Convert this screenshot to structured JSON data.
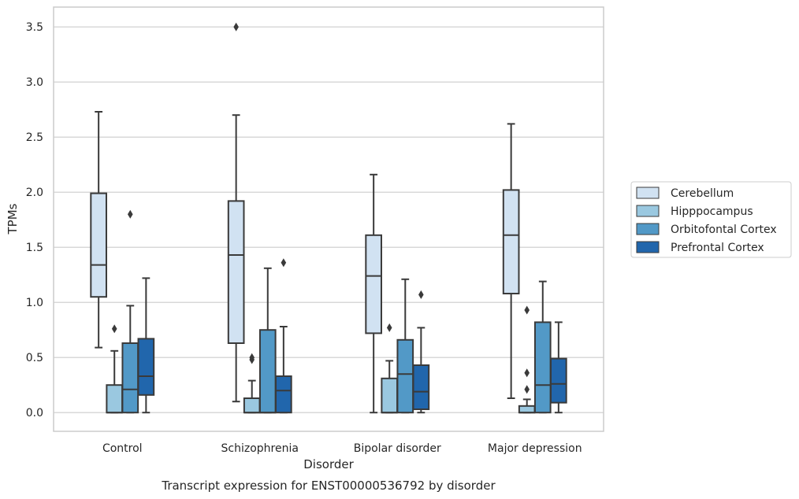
{
  "chart_data": {
    "type": "box",
    "title": "",
    "caption": "Transcript expression for ENST00000536792 by disorder",
    "xlabel": "Disorder",
    "ylabel": "TPMs",
    "ylim": [
      -0.17,
      3.68
    ],
    "yticks": [
      "0.0",
      "0.5",
      "1.0",
      "1.5",
      "2.0",
      "2.5",
      "3.0",
      "3.5"
    ],
    "ytick_values": [
      0,
      0.5,
      1.0,
      1.5,
      2.0,
      2.5,
      3.0,
      3.5
    ],
    "grid": "horizontal",
    "legend_position": "right",
    "categories": [
      "Control",
      "Schizophrenia",
      "Bipolar disorder",
      "Major depression"
    ],
    "series": [
      {
        "name": "Cerebellum",
        "color": "#d1e2f2",
        "boxes": [
          {
            "whislo": 0.59,
            "q1": 1.05,
            "med": 1.34,
            "q3": 1.99,
            "whishi": 2.73,
            "fliers": []
          },
          {
            "whislo": 0.1,
            "q1": 0.63,
            "med": 1.43,
            "q3": 1.92,
            "whishi": 2.7,
            "fliers": [
              3.5
            ]
          },
          {
            "whislo": 0.0,
            "q1": 0.72,
            "med": 1.24,
            "q3": 1.61,
            "whishi": 2.16,
            "fliers": []
          },
          {
            "whislo": 0.13,
            "q1": 1.08,
            "med": 1.61,
            "q3": 2.02,
            "whishi": 2.62,
            "fliers": []
          }
        ]
      },
      {
        "name": "Hipppocampus",
        "color": "#9ac8e0",
        "boxes": [
          {
            "whislo": 0.0,
            "q1": 0.0,
            "med": 0.0,
            "q3": 0.25,
            "whishi": 0.56,
            "fliers": [
              0.76
            ]
          },
          {
            "whislo": 0.0,
            "q1": 0.0,
            "med": 0.0,
            "q3": 0.13,
            "whishi": 0.29,
            "fliers": [
              0.48,
              0.5
            ]
          },
          {
            "whislo": 0.0,
            "q1": 0.0,
            "med": 0.0,
            "q3": 0.31,
            "whishi": 0.47,
            "fliers": [
              0.77
            ]
          },
          {
            "whislo": 0.0,
            "q1": 0.0,
            "med": 0.0,
            "q3": 0.06,
            "whishi": 0.12,
            "fliers": [
              0.21,
              0.36,
              0.93
            ]
          }
        ]
      },
      {
        "name": "Orbitofontal Cortex",
        "color": "#5299c7",
        "boxes": [
          {
            "whislo": 0.0,
            "q1": 0.0,
            "med": 0.21,
            "q3": 0.63,
            "whishi": 0.97,
            "fliers": [
              1.8
            ]
          },
          {
            "whislo": 0.0,
            "q1": 0.0,
            "med": 0.0,
            "q3": 0.75,
            "whishi": 1.31,
            "fliers": []
          },
          {
            "whislo": 0.0,
            "q1": 0.0,
            "med": 0.35,
            "q3": 0.66,
            "whishi": 1.21,
            "fliers": []
          },
          {
            "whislo": 0.0,
            "q1": 0.0,
            "med": 0.25,
            "q3": 0.82,
            "whishi": 1.19,
            "fliers": []
          }
        ]
      },
      {
        "name": "Prefrontal Cortex",
        "color": "#2166ac",
        "boxes": [
          {
            "whislo": 0.0,
            "q1": 0.16,
            "med": 0.33,
            "q3": 0.67,
            "whishi": 1.22,
            "fliers": []
          },
          {
            "whislo": 0.0,
            "q1": 0.0,
            "med": 0.2,
            "q3": 0.33,
            "whishi": 0.78,
            "fliers": [
              1.36
            ]
          },
          {
            "whislo": 0.0,
            "q1": 0.03,
            "med": 0.19,
            "q3": 0.43,
            "whishi": 0.77,
            "fliers": [
              1.07
            ]
          },
          {
            "whislo": 0.0,
            "q1": 0.09,
            "med": 0.26,
            "q3": 0.49,
            "whishi": 0.82,
            "fliers": []
          }
        ]
      }
    ]
  }
}
